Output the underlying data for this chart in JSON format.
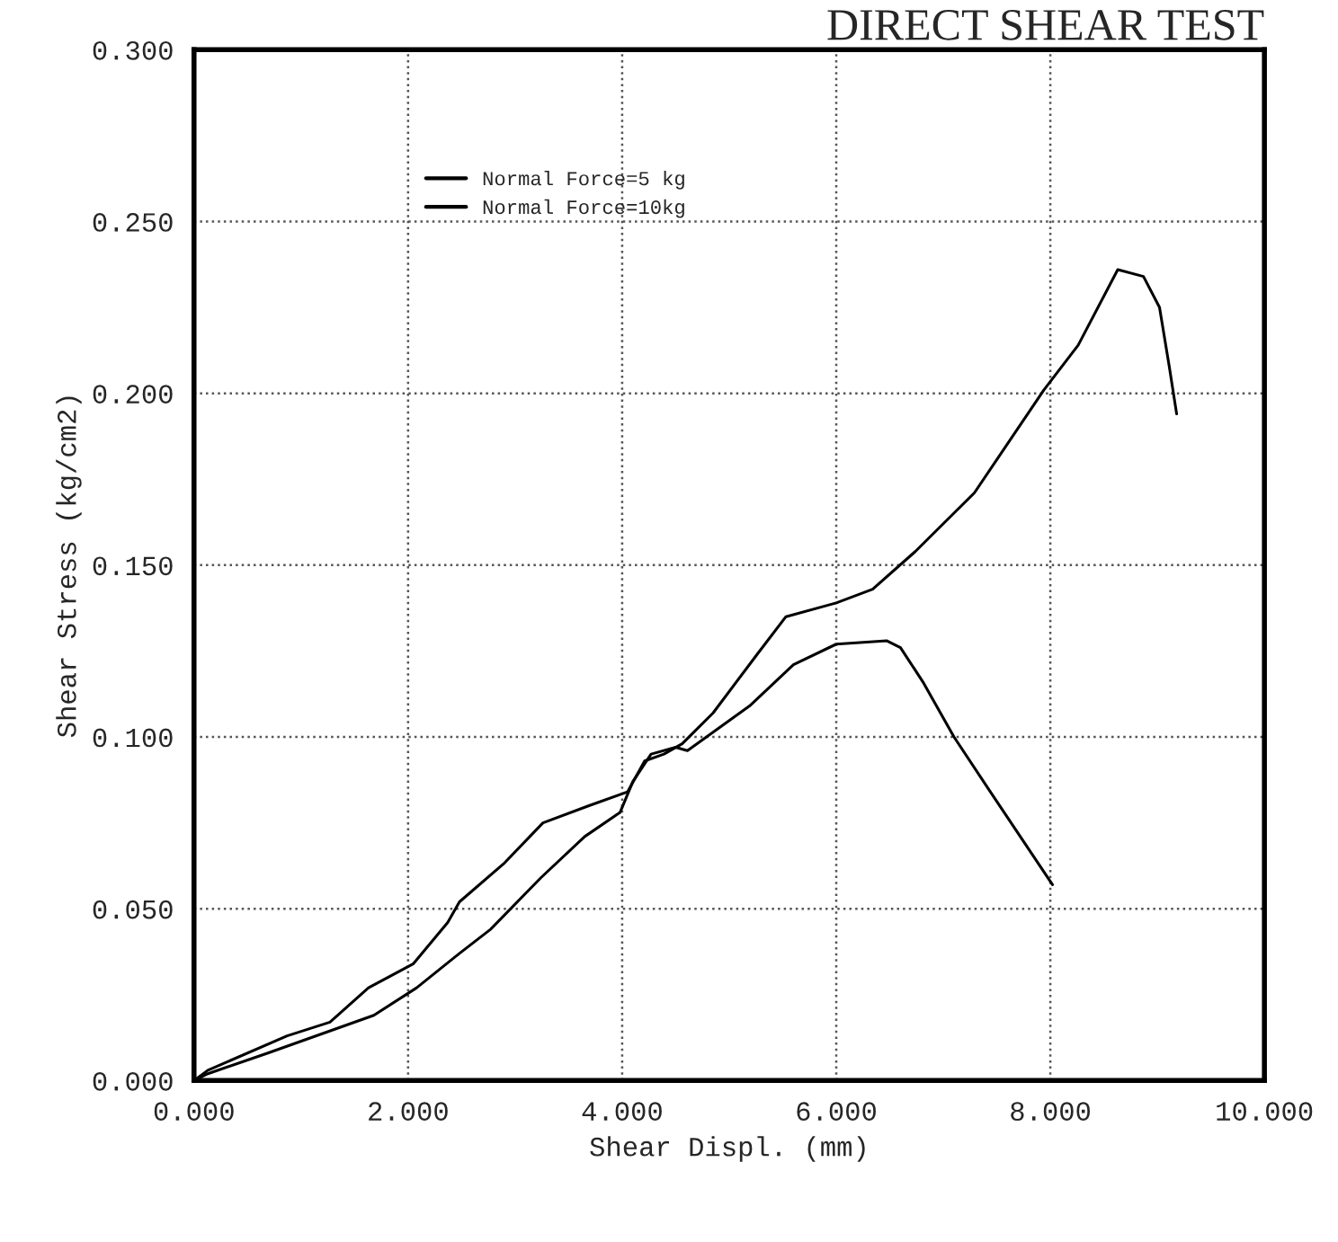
{
  "chart_data": {
    "type": "line",
    "title": "DIRECT SHEAR TEST",
    "xlabel": "Shear Displ. (mm)",
    "ylabel": "Shear Stress (kg/cm2)",
    "xlim": [
      0,
      10
    ],
    "ylim": [
      0,
      0.3
    ],
    "xticks": [
      {
        "value": 0,
        "label": "0.000"
      },
      {
        "value": 2,
        "label": "2.000"
      },
      {
        "value": 4,
        "label": "4.000"
      },
      {
        "value": 6,
        "label": "6.000"
      },
      {
        "value": 8,
        "label": "8.000"
      },
      {
        "value": 10,
        "label": "10.000"
      }
    ],
    "yticks": [
      {
        "value": 0,
        "label": "0.000"
      },
      {
        "value": 0.05,
        "label": "0.050"
      },
      {
        "value": 0.1,
        "label": "0.100"
      },
      {
        "value": 0.15,
        "label": "0.150"
      },
      {
        "value": 0.2,
        "label": "0.200"
      },
      {
        "value": 0.25,
        "label": "0.250"
      },
      {
        "value": 0.3,
        "label": "0.300"
      }
    ],
    "grid": true,
    "legend": "top left",
    "marker": "none",
    "line_style": "solid",
    "series": [
      {
        "name": "Normal Force=5 kg",
        "color": "#000000",
        "x": [
          0,
          0.13,
          0.69,
          1.68,
          2.08,
          2.48,
          2.77,
          3.24,
          3.65,
          3.98,
          4.1,
          4.27,
          4.5,
          4.61,
          5.19,
          5.6,
          6.0,
          6.47,
          6.6,
          6.81,
          7.1,
          7.44,
          8.02
        ],
        "values": [
          0,
          0.002,
          0.008,
          0.019,
          0.027,
          0.037,
          0.044,
          0.059,
          0.071,
          0.078,
          0.087,
          0.095,
          0.097,
          0.096,
          0.109,
          0.121,
          0.127,
          0.128,
          0.126,
          0.116,
          0.1,
          0.084,
          0.057
        ]
      },
      {
        "name": "Normal Force=10kg",
        "color": "#000000",
        "x": [
          0,
          0.13,
          0.87,
          1.27,
          1.63,
          2.05,
          2.37,
          2.48,
          2.89,
          3.26,
          3.69,
          4.05,
          4.21,
          4.39,
          4.56,
          4.85,
          5.26,
          5.53,
          6.0,
          6.34,
          6.74,
          7.29,
          7.94,
          8.26,
          8.63,
          8.87,
          9.02,
          9.11,
          9.18
        ],
        "values": [
          0,
          0.003,
          0.013,
          0.017,
          0.027,
          0.034,
          0.046,
          0.052,
          0.063,
          0.075,
          0.08,
          0.084,
          0.093,
          0.095,
          0.098,
          0.107,
          0.124,
          0.135,
          0.139,
          0.143,
          0.154,
          0.171,
          0.201,
          0.214,
          0.236,
          0.234,
          0.225,
          0.208,
          0.194
        ]
      }
    ]
  }
}
